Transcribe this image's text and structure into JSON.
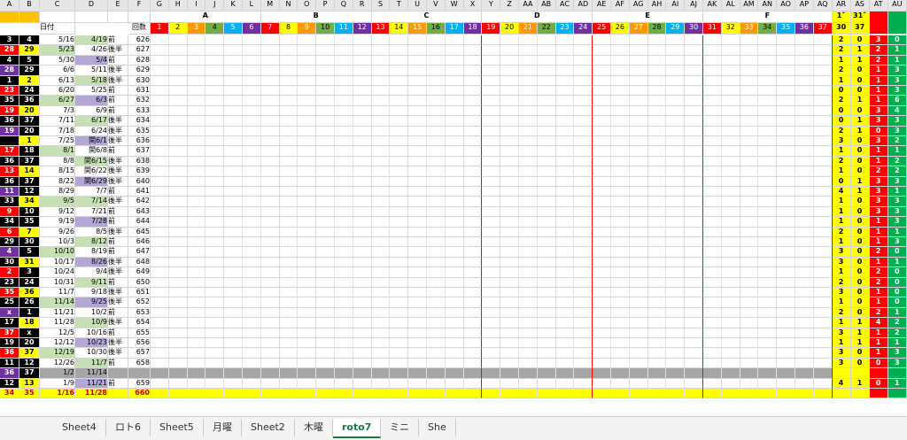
{
  "columns": [
    "A",
    "B",
    "C",
    "D",
    "E",
    "F",
    "G",
    "H",
    "I",
    "J",
    "K",
    "L",
    "M",
    "N",
    "O",
    "P",
    "Q",
    "R",
    "S",
    "T",
    "U",
    "V",
    "W",
    "X",
    "Y",
    "Z",
    "AA",
    "AB",
    "AC",
    "AD",
    "AE",
    "AF",
    "AG",
    "AH",
    "AI",
    "AJ",
    "AK",
    "AL",
    "AM",
    "AN",
    "AO",
    "AP",
    "AQ",
    "AR",
    "AS",
    "AT",
    "AU"
  ],
  "sections": [
    "A",
    "B",
    "C",
    "D",
    "E",
    "F"
  ],
  "numbers": [
    1,
    2,
    3,
    4,
    5,
    6,
    7,
    8,
    9,
    10,
    11,
    12,
    13,
    14,
    15,
    16,
    17,
    18,
    19,
    20,
    21,
    22,
    23,
    24,
    25,
    26,
    27,
    28,
    29,
    30,
    31,
    32,
    33,
    34,
    35,
    36,
    37
  ],
  "header": {
    "date": "日付",
    "round": "回数",
    "ar_top": "1ˇ",
    "as_top": "31ˇ",
    "ar_sub": "30",
    "as_sub": "37"
  },
  "rows": [
    [
      3,
      4,
      "5/16",
      "4/19",
      "前",
      626,
      2,
      0,
      3,
      0
    ],
    [
      28,
      29,
      "5/23",
      "4/26",
      "後半",
      627,
      2,
      1,
      2,
      1
    ],
    [
      4,
      5,
      "5/30",
      "5/4",
      "前",
      628,
      1,
      1,
      2,
      1
    ],
    [
      28,
      29,
      "6/6",
      "5/11",
      "後半",
      629,
      2,
      0,
      1,
      3
    ],
    [
      1,
      2,
      "6/13",
      "5/18",
      "後半",
      630,
      1,
      0,
      1,
      3
    ],
    [
      23,
      24,
      "6/20",
      "5/25",
      "前",
      631,
      0,
      0,
      1,
      3
    ],
    [
      35,
      36,
      "6/27",
      "6/3",
      "前",
      632,
      2,
      1,
      1,
      6
    ],
    [
      19,
      20,
      "7/3",
      "6/9",
      "前",
      633,
      0,
      0,
      3,
      4
    ],
    [
      36,
      37,
      "7/11",
      "6/17",
      "後半",
      634,
      0,
      1,
      3,
      3
    ],
    [
      19,
      20,
      "7/18",
      "6/24",
      "後半",
      635,
      2,
      1,
      0,
      3
    ],
    [
      null,
      1,
      "7/25",
      "関6/1",
      "後半",
      636,
      3,
      0,
      3,
      2
    ],
    [
      17,
      18,
      "8/1",
      "関6/8",
      "前",
      637,
      1,
      0,
      1,
      1
    ],
    [
      36,
      37,
      "8/8",
      "関6/15",
      "後半",
      638,
      2,
      0,
      1,
      2
    ],
    [
      13,
      14,
      "8/15",
      "関6/22",
      "後半",
      639,
      1,
      0,
      2,
      2
    ],
    [
      36,
      37,
      "8/22",
      "関6/29",
      "後半",
      640,
      0,
      1,
      3,
      3
    ],
    [
      11,
      12,
      "8/29",
      "7/7",
      "前",
      641,
      4,
      1,
      3,
      1
    ],
    [
      33,
      34,
      "9/5",
      "7/14",
      "後半",
      642,
      1,
      0,
      3,
      3
    ],
    [
      9,
      10,
      "9/12",
      "7/21",
      "前",
      643,
      1,
      0,
      3,
      3
    ],
    [
      34,
      35,
      "9/19",
      "7/28",
      "前",
      644,
      1,
      0,
      1,
      3
    ],
    [
      6,
      7,
      "9/26",
      "8/5",
      "後半",
      645,
      2,
      0,
      1,
      1
    ],
    [
      29,
      30,
      "10/3",
      "8/12",
      "前",
      646,
      1,
      0,
      1,
      3
    ],
    [
      4,
      5,
      "10/10",
      "8/19",
      "前",
      647,
      3,
      0,
      2,
      0
    ],
    [
      30,
      31,
      "10/17",
      "8/26",
      "後半",
      648,
      3,
      0,
      1,
      1
    ],
    [
      2,
      3,
      "10/24",
      "9/4",
      "後半",
      649,
      1,
      0,
      2,
      0
    ],
    [
      23,
      24,
      "10/31",
      "9/11",
      "前",
      650,
      2,
      0,
      2,
      0
    ],
    [
      35,
      36,
      "11/7",
      "9/18",
      "後半",
      651,
      3,
      0,
      1,
      0
    ],
    [
      25,
      26,
      "11/14",
      "9/25",
      "後半",
      652,
      1,
      0,
      1,
      0
    ],
    [
      "x",
      1,
      "11/21",
      "10/2",
      "前",
      653,
      2,
      0,
      2,
      1
    ],
    [
      17,
      18,
      "11/28",
      "10/9",
      "後半",
      654,
      1,
      1,
      4,
      2
    ],
    [
      37,
      "x",
      "12/5",
      "10/16",
      "前",
      655,
      3,
      1,
      1,
      2
    ],
    [
      19,
      20,
      "12/12",
      "10/23",
      "後半",
      656,
      1,
      1,
      1,
      1
    ],
    [
      36,
      37,
      "12/19",
      "10/30",
      "後半",
      657,
      3,
      0,
      1,
      3
    ],
    [
      11,
      12,
      "12/26",
      "11/7",
      "前",
      658,
      3,
      0,
      0,
      3
    ],
    [
      36,
      37,
      "1/2",
      "11/14",
      null,
      null,
      null,
      null,
      null,
      null
    ],
    [
      12,
      13,
      "1/9",
      "11/21",
      "前",
      659,
      4,
      1,
      0,
      1
    ],
    [
      34,
      35,
      "1/16",
      "11/28",
      null,
      660,
      null,
      null,
      null,
      null
    ]
  ],
  "tabs": [
    "Sheet4",
    "ロト6",
    "Sheet5",
    "月曜",
    "Sheet2",
    "木曜",
    "roto7",
    "ミニ",
    "She"
  ],
  "active_tab": "roto7"
}
